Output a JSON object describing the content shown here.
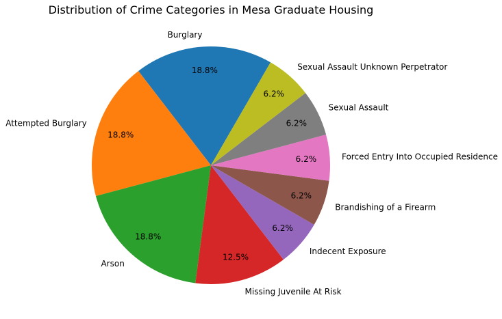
{
  "chart_data": {
    "type": "pie",
    "title": "Distribution of Crime Categories in Mesa Graduate Housing",
    "slices": [
      {
        "label": "Burglary",
        "value": 18.75,
        "pct_label": "18.8%",
        "color": "#1f77b4"
      },
      {
        "label": "Attempted Burglary",
        "value": 18.75,
        "pct_label": "18.8%",
        "color": "#ff7f0e"
      },
      {
        "label": "Arson",
        "value": 18.75,
        "pct_label": "18.8%",
        "color": "#2ca02c"
      },
      {
        "label": "Missing Juvenile At Risk",
        "value": 12.5,
        "pct_label": "12.5%",
        "color": "#d62728"
      },
      {
        "label": "Indecent Exposure",
        "value": 6.25,
        "pct_label": "6.2%",
        "color": "#9467bd"
      },
      {
        "label": "Brandishing of a Firearm",
        "value": 6.25,
        "pct_label": "6.2%",
        "color": "#8c564b"
      },
      {
        "label": "Forced Entry Into Occupied Residence",
        "value": 6.25,
        "pct_label": "6.2%",
        "color": "#e377c2"
      },
      {
        "label": "Sexual Assault",
        "value": 6.25,
        "pct_label": "6.2%",
        "color": "#7f7f7f"
      },
      {
        "label": "Sexual Assault Unknown Perpetrator",
        "value": 6.25,
        "pct_label": "6.2%",
        "color": "#bcbd22"
      }
    ],
    "start_angle_deg": 60,
    "direction": "counterclockwise",
    "legend": "none"
  }
}
